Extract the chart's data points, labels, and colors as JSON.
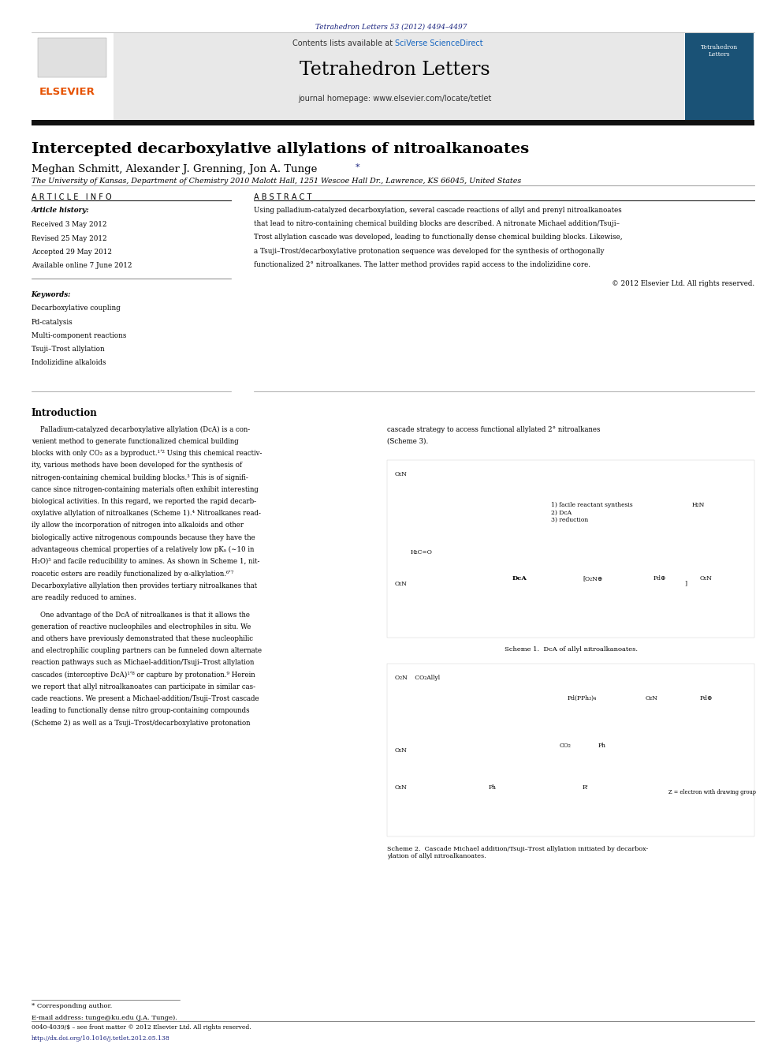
{
  "page_width": 9.92,
  "page_height": 13.23,
  "bg_color": "#ffffff",
  "header_top_text": "Tetrahedron Letters 53 (2012) 4494–4497",
  "header_top_color": "#1a237e",
  "header_bg_color": "#e8e8e8",
  "header_journal_name": "Tetrahedron Letters",
  "header_contents_text": "Contents lists available at ",
  "header_sciverse": "SciVerse ScienceDirect",
  "header_homepage": "journal homepage: www.elsevier.com/locate/tetlet",
  "elsevier_color": "#e65100",
  "article_title": "Intercepted decarboxylative allylations of nitroalkanoates",
  "authors": "Meghan Schmitt, Alexander J. Grenning, Jon A. Tunge",
  "affiliation": "The University of Kansas, Department of Chemistry 2010 Malott Hall, 1251 Wescoe Hall Dr., Lawrence, KS 66045, United States",
  "section_article_info": "A R T I C L E   I N F O",
  "section_abstract": "A B S T R A C T",
  "article_history_label": "Article history:",
  "received": "Received 3 May 2012",
  "revised": "Revised 25 May 2012",
  "accepted": "Accepted 29 May 2012",
  "available": "Available online 7 June 2012",
  "keywords_label": "Keywords:",
  "keywords": [
    "Decarboxylative coupling",
    "Pd-catalysis",
    "Multi-component reactions",
    "Tsuji–Trost allylation",
    "Indolizidine alkaloids"
  ],
  "copyright": "© 2012 Elsevier Ltd. All rights reserved.",
  "intro_heading": "Introduction",
  "scheme1_caption": "Scheme 1.  DcA of allyl nitroalkanoates.",
  "scheme2_caption": "Scheme 2.  Cascade Michael addition/Tsuji–Trost allylation initiated by decarbox-\nylation of allyl nitroalkanoates.",
  "footer_star": "* Corresponding author.",
  "footer_email": "E-mail address: tunge@ku.edu (J.A. Tunge).",
  "footer_issn": "0040-4039/$ – see front matter © 2012 Elsevier Ltd. All rights reserved.",
  "footer_doi": "http://dx.doi.org/10.1016/j.tetlet.2012.05.138",
  "text_color": "#000000",
  "link_color": "#1a237e",
  "sciverse_color": "#1565c0"
}
